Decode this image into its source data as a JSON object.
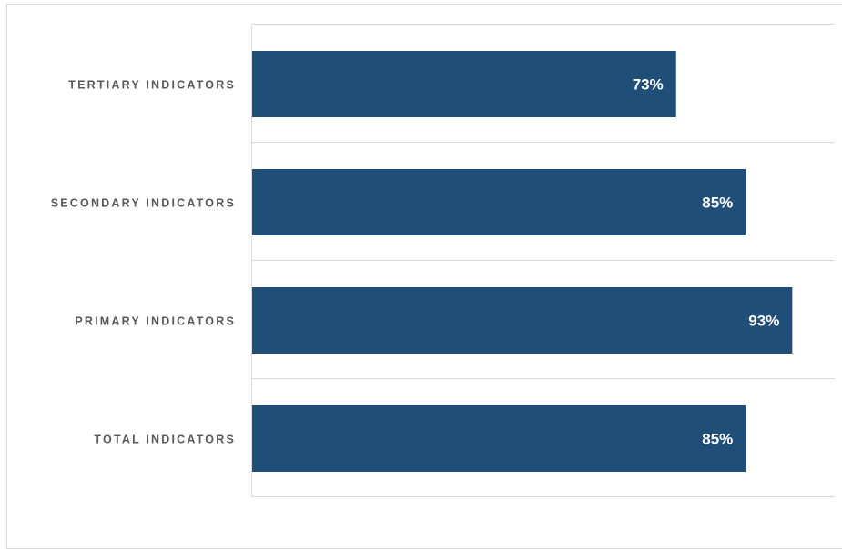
{
  "chart_data": {
    "type": "bar",
    "orientation": "horizontal",
    "title": "",
    "xlabel": "",
    "ylabel": "",
    "categories": [
      "TERTIARY INDICATORS",
      "SECONDARY INDICATORS",
      "PRIMARY INDICATORS",
      "TOTAL INDICATORS"
    ],
    "values": [
      73,
      85,
      93,
      85
    ],
    "data_labels": [
      "73%",
      "85%",
      "93%",
      "85%"
    ],
    "xlim": [
      0,
      100
    ],
    "unit": "%",
    "bar_color": "#1f4e79",
    "label_color": "#595959",
    "data_label_color": "#ffffff",
    "grid": true,
    "legend": "none"
  }
}
